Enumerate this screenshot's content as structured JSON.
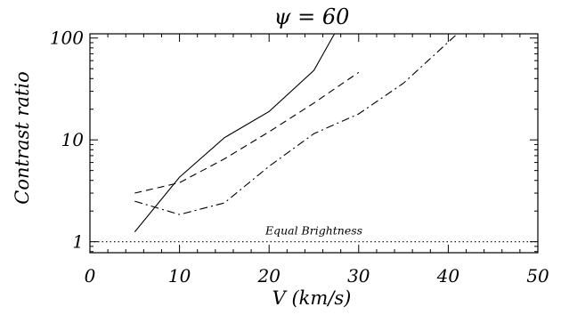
{
  "chart_data": {
    "type": "line",
    "title": "ψ = 60",
    "xlabel": "V (km/s)",
    "ylabel": "Contrast ratio",
    "xlim": [
      0,
      50
    ],
    "ylim": [
      0.78,
      110
    ],
    "yscale": "log",
    "grid": false,
    "xticks": [
      0,
      10,
      20,
      30,
      40,
      50
    ],
    "xtick_labels": [
      "0",
      "10",
      "20",
      "30",
      "40",
      "50"
    ],
    "yticks": [
      1,
      10,
      100
    ],
    "ytick_labels": [
      "1",
      "10",
      "100"
    ],
    "series": [
      {
        "style": "solid",
        "x": [
          5,
          10,
          15,
          20,
          25,
          27.3
        ],
        "y": [
          1.25,
          4.3,
          10.5,
          19,
          48,
          110
        ]
      },
      {
        "style": "dashed",
        "x": [
          5,
          10,
          15,
          20,
          25,
          30
        ],
        "y": [
          3.0,
          3.8,
          6.5,
          12,
          23,
          46
        ]
      },
      {
        "style": "dashdot",
        "x": [
          5,
          10,
          15,
          20,
          25,
          30,
          35,
          41
        ],
        "y": [
          2.5,
          1.85,
          2.4,
          5.5,
          11.5,
          18,
          36,
          110
        ]
      }
    ],
    "reference_line": {
      "y": 1,
      "style": "dotted",
      "label": "Equal Brightness"
    }
  }
}
